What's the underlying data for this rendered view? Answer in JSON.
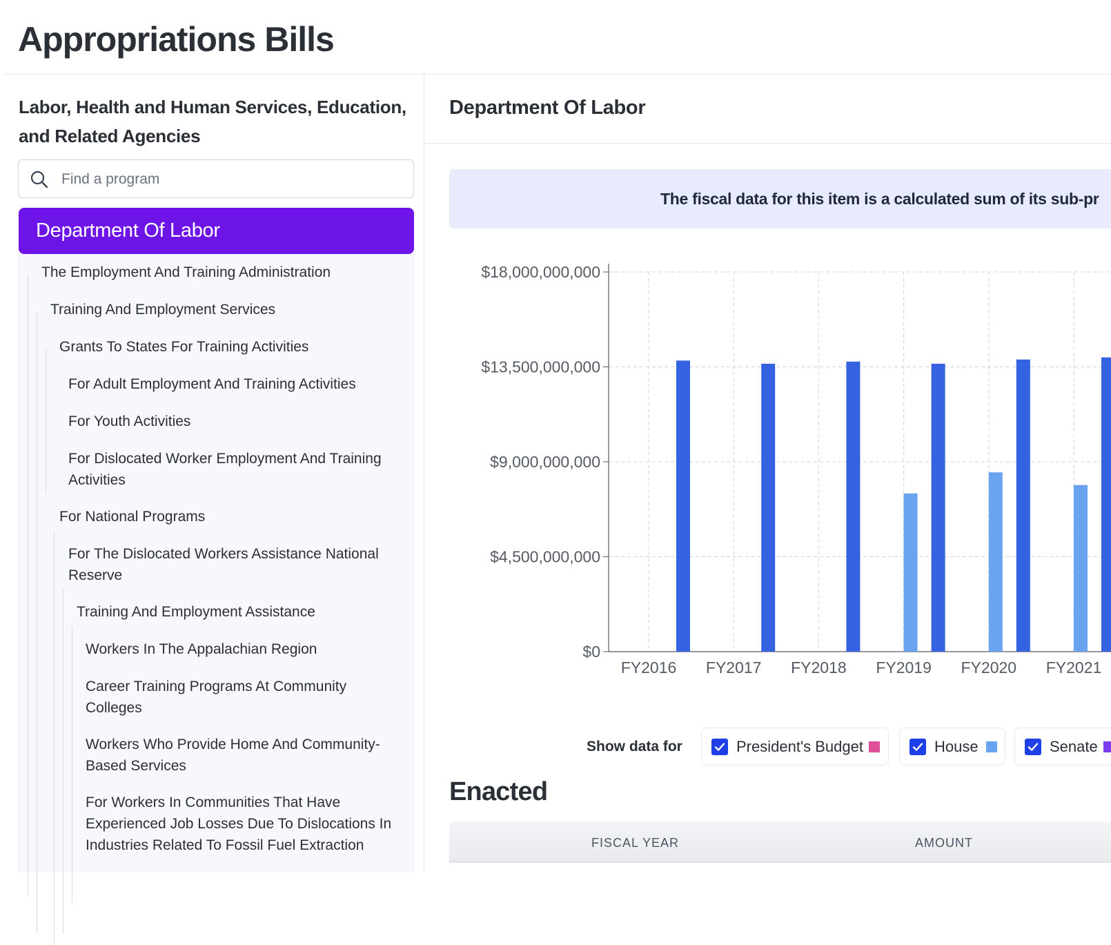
{
  "page": {
    "title": "Appropriations Bills"
  },
  "sidebar": {
    "bill_name": "Labor, Health and Human Services, Education, and Related Agencies",
    "search": {
      "placeholder": "Find a program",
      "value": ""
    },
    "selected": "Department Of Labor",
    "tree": [
      {
        "label": "The Employment And Training Administration",
        "level": 1
      },
      {
        "label": "Training And Employment Services",
        "level": 2
      },
      {
        "label": "Grants To States For Training Activities",
        "level": 3
      },
      {
        "label": "For Adult Employment And Training Activities",
        "level": 4
      },
      {
        "label": "For Youth Activities",
        "level": 4
      },
      {
        "label": "For Dislocated Worker Employment And Training Activities",
        "level": 4
      },
      {
        "label": "For National Programs",
        "level": 3
      },
      {
        "label": "For The Dislocated Workers Assistance National Reserve",
        "level": 4
      },
      {
        "label": "Training And Employment Assistance",
        "level": 5
      },
      {
        "label": "Workers In The Appalachian Region",
        "level": 6
      },
      {
        "label": "Career Training Programs At Community Colleges",
        "level": 6
      },
      {
        "label": "Workers Who Provide Home And Community-Based Services",
        "level": 6
      },
      {
        "label": "For Workers In Communities That Have Experienced Job Losses Due To Dislocations In Industries Related To Fossil Fuel Extraction",
        "level": 6
      }
    ]
  },
  "main": {
    "title": "Department Of Labor",
    "banner": "The fiscal data for this item is a calculated sum of its sub-pr",
    "legend": {
      "title": "Show data for",
      "items": [
        {
          "label": "President's Budget",
          "checked": true,
          "color": "#e0509a"
        },
        {
          "label": "House",
          "checked": true,
          "color": "#6aa3f0"
        },
        {
          "label": "Senate",
          "checked": true,
          "color": "#7b3cf0"
        }
      ]
    },
    "enacted": {
      "title": "Enacted",
      "columns": [
        "FISCAL YEAR",
        "AMOUNT"
      ]
    }
  },
  "chart_data": {
    "type": "bar",
    "categories": [
      "FY2016",
      "FY2017",
      "FY2018",
      "FY2019",
      "FY2020",
      "FY2021"
    ],
    "ylim": [
      0,
      18000000000
    ],
    "ytick_labels": [
      "$0",
      "$4,500,000,000",
      "$9,000,000,000",
      "$13,500,000,000",
      "$18,000,000,000"
    ],
    "yticks": [
      0,
      4500000000,
      9000000000,
      13500000000,
      18000000000
    ],
    "grid": true,
    "series": [
      {
        "key": "house",
        "values": [
          null,
          null,
          null,
          7500000000,
          8500000000,
          7900000000
        ],
        "color": "#6aa3f0"
      },
      {
        "key": "enacted",
        "values": [
          13800000000,
          13650000000,
          13750000000,
          13650000000,
          13850000000,
          13950000000
        ],
        "color": "#3462e0"
      }
    ]
  }
}
